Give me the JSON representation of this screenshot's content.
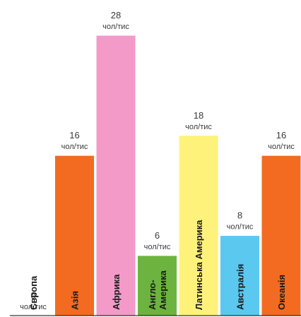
{
  "chart_data": {
    "type": "bar",
    "categories": [
      "Європа",
      "Азія",
      "Африка",
      "Англо-Америка",
      "Латинська Америка",
      "Австралія",
      "Океанія"
    ],
    "category_lines": [
      [
        "Європа"
      ],
      [
        "Азія"
      ],
      [
        "Африка"
      ],
      [
        "Англо-",
        "Америка"
      ],
      [
        "Латинська Америка"
      ],
      [
        "Австралія"
      ],
      [
        "Океанія"
      ]
    ],
    "values": [
      0,
      16,
      28,
      6,
      18,
      8,
      16
    ],
    "value_labels": [
      "0",
      "16",
      "28",
      "6",
      "18",
      "8",
      "16"
    ],
    "unit": "чол/тис",
    "colors": [
      "#ffffff",
      "#f26b21",
      "#f49ac8",
      "#6cb33f",
      "#fff27a",
      "#5bc8ef",
      "#f26b21"
    ],
    "label_colors": [
      "#1a1a1a",
      "#ffffff",
      "#ffffff",
      "#ffffff",
      "#1a1a1a",
      "#1a1a1a",
      "#ffffff"
    ],
    "ylim": [
      0,
      28
    ],
    "grid": false
  }
}
